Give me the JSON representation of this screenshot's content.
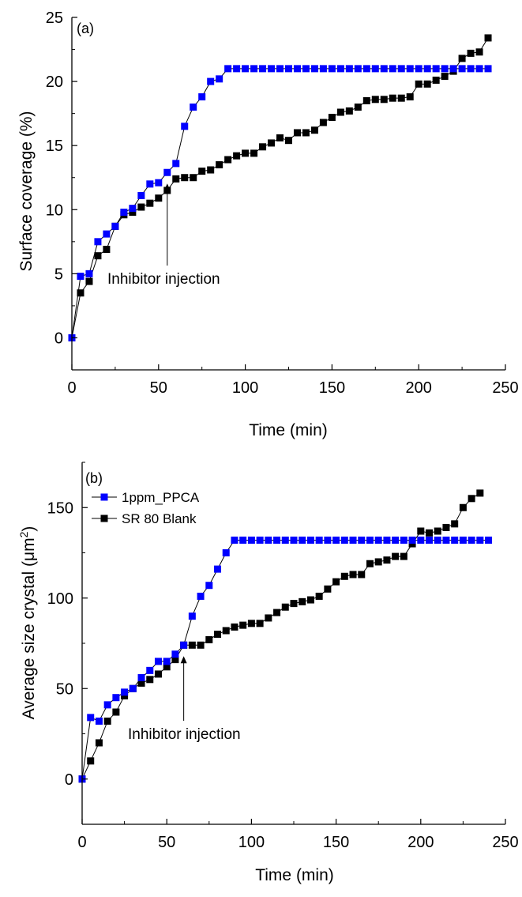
{
  "chart_data": [
    {
      "type": "line",
      "panel_label": "(a)",
      "xlabel": "Time (min)",
      "ylabel": "Surface coverage (%)",
      "xlim": [
        0,
        250
      ],
      "ylim": [
        -2.5,
        25
      ],
      "xticks": [
        0,
        50,
        100,
        150,
        200,
        250
      ],
      "yticks": [
        0,
        5,
        10,
        15,
        20,
        25
      ],
      "grid": false,
      "annotation": {
        "text": "Inhibitor injection",
        "x": 55
      },
      "series": [
        {
          "color": "#0000ff",
          "x": [
            0,
            5,
            10,
            15,
            20,
            25,
            30,
            35,
            40,
            45,
            50,
            55,
            60,
            65,
            70,
            75,
            80,
            85,
            90,
            95,
            100,
            105,
            110,
            115,
            120,
            125,
            130,
            135,
            140,
            145,
            150,
            155,
            160,
            165,
            170,
            175,
            180,
            185,
            190,
            195,
            200,
            205,
            210,
            215,
            220,
            225,
            230,
            235,
            240
          ],
          "y": [
            0,
            4.8,
            5.0,
            7.5,
            8.1,
            8.7,
            9.8,
            10.1,
            11.1,
            12.0,
            12.1,
            12.9,
            13.6,
            16.5,
            18.0,
            18.8,
            20.0,
            20.2,
            21.0,
            21.0,
            21.0,
            21.0,
            21.0,
            21.0,
            21.0,
            21.0,
            21.0,
            21.0,
            21.0,
            21.0,
            21.0,
            21.0,
            21.0,
            21.0,
            21.0,
            21.0,
            21.0,
            21.0,
            21.0,
            21.0,
            21.0,
            21.0,
            21.0,
            21.0,
            21.0,
            21.0,
            21.0,
            21.0,
            21.0
          ]
        },
        {
          "color": "#000000",
          "x": [
            0,
            5,
            10,
            15,
            20,
            25,
            30,
            35,
            40,
            45,
            50,
            55,
            60,
            65,
            70,
            75,
            80,
            85,
            90,
            95,
            100,
            105,
            110,
            115,
            120,
            125,
            130,
            135,
            140,
            145,
            150,
            155,
            160,
            165,
            170,
            175,
            180,
            185,
            190,
            195,
            200,
            205,
            210,
            215,
            220,
            225,
            230,
            235,
            240
          ],
          "y": [
            0,
            3.5,
            4.4,
            6.4,
            6.9,
            8.7,
            9.6,
            9.8,
            10.2,
            10.5,
            10.9,
            11.5,
            12.4,
            12.5,
            12.5,
            13.0,
            13.1,
            13.5,
            13.9,
            14.2,
            14.4,
            14.4,
            14.9,
            15.2,
            15.6,
            15.4,
            16.0,
            16.0,
            16.2,
            16.8,
            17.2,
            17.6,
            17.7,
            18.0,
            18.5,
            18.6,
            18.6,
            18.7,
            18.7,
            18.8,
            19.8,
            19.8,
            20.1,
            20.4,
            20.8,
            21.8,
            22.2,
            22.3,
            23.4
          ]
        }
      ]
    },
    {
      "type": "line",
      "panel_label": "(b)",
      "xlabel": "Time (min)",
      "ylabel": "Average size crystal (μm²)",
      "ylabel_parts": {
        "main": "Average size crystal (",
        "unit": "μm",
        "sup": "2",
        "close": ")"
      },
      "xlim": [
        0,
        250
      ],
      "ylim": [
        -25,
        175
      ],
      "xticks": [
        0,
        50,
        100,
        150,
        200,
        250
      ],
      "yticks": [
        0,
        50,
        100,
        150
      ],
      "grid": false,
      "legend_position": "upper-left",
      "annotation": {
        "text": "Inhibitor injection",
        "x": 60
      },
      "series": [
        {
          "name": "1ppm_PPCA",
          "color": "#0000ff",
          "x": [
            0,
            5,
            10,
            15,
            20,
            25,
            30,
            35,
            40,
            45,
            50,
            55,
            60,
            65,
            70,
            75,
            80,
            85,
            90,
            95,
            100,
            105,
            110,
            115,
            120,
            125,
            130,
            135,
            140,
            145,
            150,
            155,
            160,
            165,
            170,
            175,
            180,
            185,
            190,
            195,
            200,
            205,
            210,
            215,
            220,
            225,
            230,
            235,
            240
          ],
          "y": [
            0,
            34,
            32,
            41,
            45,
            48,
            50,
            56,
            60,
            65,
            65,
            69,
            74,
            90,
            101,
            107,
            116,
            125,
            132,
            132,
            132,
            132,
            132,
            132,
            132,
            132,
            132,
            132,
            132,
            132,
            132,
            132,
            132,
            132,
            132,
            132,
            132,
            132,
            132,
            132,
            132,
            132,
            132,
            132,
            132,
            132,
            132,
            132,
            132
          ]
        },
        {
          "name": "SR 80 Blank",
          "color": "#000000",
          "x": [
            0,
            5,
            10,
            15,
            20,
            25,
            30,
            35,
            40,
            45,
            50,
            55,
            60,
            65,
            70,
            75,
            80,
            85,
            90,
            95,
            100,
            105,
            110,
            115,
            120,
            125,
            130,
            135,
            140,
            145,
            150,
            155,
            160,
            165,
            170,
            175,
            180,
            185,
            190,
            195,
            200,
            205,
            210,
            215,
            220,
            225,
            230,
            235
          ],
          "y": [
            0,
            10,
            20,
            32,
            37,
            46,
            50,
            53,
            55,
            58,
            62,
            66,
            74,
            74,
            74,
            77,
            80,
            82,
            84,
            85,
            86,
            86,
            89,
            92,
            95,
            97,
            98,
            99,
            101,
            105,
            109,
            112,
            113,
            113,
            119,
            120,
            121,
            123,
            123,
            130,
            137,
            136,
            137,
            139,
            141,
            150,
            155,
            158
          ]
        }
      ]
    }
  ]
}
